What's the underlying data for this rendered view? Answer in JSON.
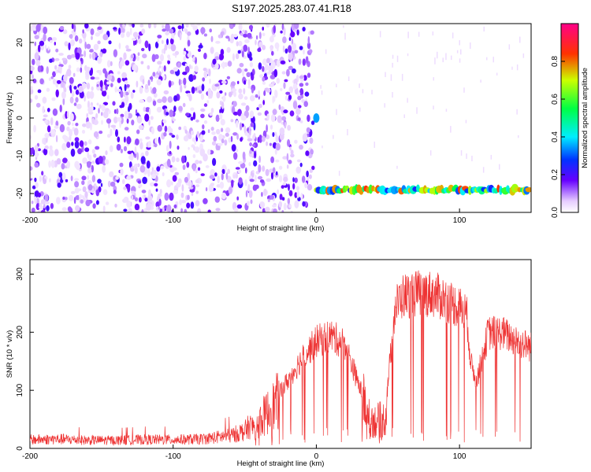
{
  "title": "S197.2025.283.07.41.R18",
  "chart_data": [
    {
      "type": "heatmap",
      "xlabel": "Height of straight line (km)",
      "ylabel": "Frequency (Hz)",
      "xlim": [
        -200,
        150
      ],
      "ylim": [
        -25,
        25
      ],
      "xticks": [
        -200,
        -100,
        0,
        100
      ],
      "yticks": [
        -20,
        -10,
        0,
        10,
        20
      ],
      "colorbar": {
        "label": "Normalized spectral amplitude",
        "range": [
          0,
          1
        ],
        "ticks": [
          0.0,
          0.2,
          0.4,
          0.6,
          0.8
        ],
        "tick_labels": [
          "0.0",
          "0.2",
          "0.4",
          "0.6",
          "0.8"
        ]
      },
      "features": [
        {
          "name": "broadband noise",
          "x_range": [
            -200,
            -2
          ],
          "freq_range": [
            -25,
            25
          ],
          "level": 0.08
        },
        {
          "name": "spike at 0 Hz",
          "x": 0,
          "freq": 0,
          "level": 0.35
        },
        {
          "name": "carrier band",
          "x_range": [
            0,
            150
          ],
          "freq": -19,
          "level": 0.85
        }
      ]
    },
    {
      "type": "line",
      "xlabel": "Height of straight line (km)",
      "ylabel": "SNR (10 * v/v)",
      "xlim": [
        -200,
        150
      ],
      "ylim": [
        0,
        325
      ],
      "xticks": [
        -200,
        -100,
        0,
        100
      ],
      "yticks": [
        0,
        100,
        200,
        300
      ],
      "series": [
        {
          "name": "SNR",
          "color": "#ee3333",
          "x": [
            -200,
            -180,
            -160,
            -140,
            -120,
            -100,
            -80,
            -60,
            -50,
            -40,
            -30,
            -20,
            -10,
            0,
            10,
            20,
            30,
            40,
            48,
            52,
            55,
            60,
            70,
            80,
            90,
            100,
            105,
            108,
            112,
            120,
            130,
            140,
            150
          ],
          "level": [
            15,
            16,
            14,
            14,
            15,
            15,
            16,
            22,
            30,
            55,
            85,
            120,
            160,
            190,
            200,
            185,
            110,
            55,
            60,
            170,
            250,
            270,
            275,
            275,
            265,
            250,
            240,
            150,
            120,
            205,
            205,
            190,
            180
          ]
        }
      ]
    }
  ]
}
